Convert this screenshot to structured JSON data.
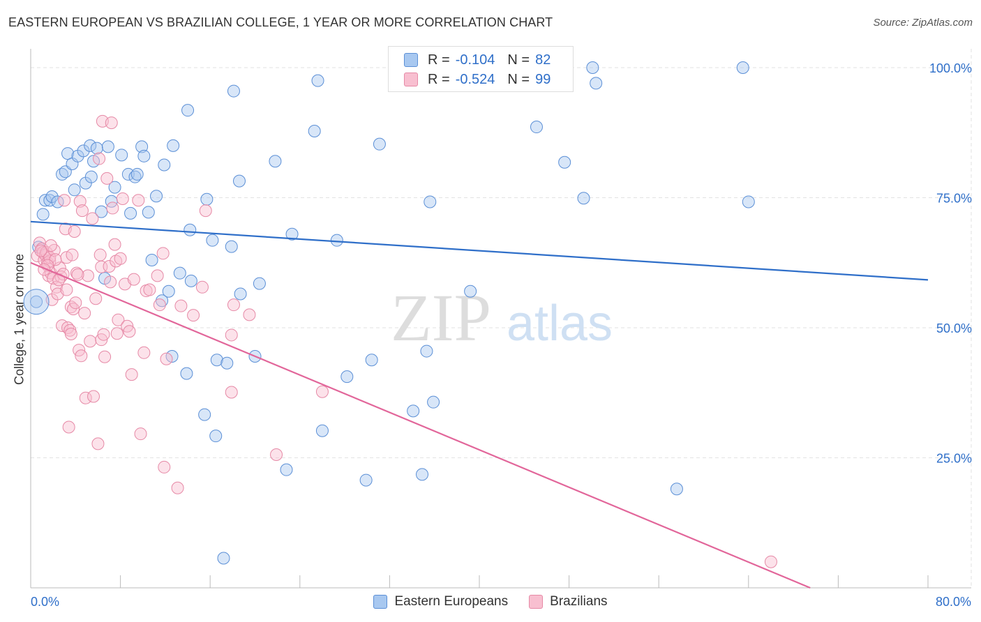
{
  "header": {
    "title": "EASTERN EUROPEAN VS BRAZILIAN COLLEGE, 1 YEAR OR MORE CORRELATION CHART",
    "source": "Source: ZipAtlas.com"
  },
  "watermark": {
    "zip": "ZIP",
    "atlas": "atlas"
  },
  "legend_top": {
    "r_label": "R =",
    "n_label": "N =",
    "rows": [
      {
        "r": "-0.104",
        "n": "82",
        "fill": "#a8c8f0",
        "stroke": "#5b8fd6"
      },
      {
        "r": "-0.524",
        "n": "99",
        "fill": "#f8bfd0",
        "stroke": "#e689a6"
      }
    ]
  },
  "chart_data": {
    "type": "scatter",
    "title": "EASTERN EUROPEAN VS BRAZILIAN COLLEGE, 1 YEAR OR MORE CORRELATION CHART",
    "xlabel": "",
    "ylabel": "College, 1 year or more",
    "xlim": [
      0,
      80
    ],
    "ylim": [
      0,
      102
    ],
    "x_tick_labels": [
      "0.0%",
      "80.0%"
    ],
    "y_ticks": [
      25,
      50,
      75,
      100
    ],
    "y_tick_labels": [
      "25.0%",
      "50.0%",
      "75.0%",
      "100.0%"
    ],
    "grid": true,
    "legend_position": "bottom",
    "series": [
      {
        "name": "Eastern Europeans",
        "color": "#5b8fd6",
        "fill": "#a8c8f0",
        "trend": {
          "x": [
            0,
            80
          ],
          "y": [
            70.4,
            59.2
          ],
          "color": "#2f6fc9"
        },
        "points": [
          [
            0.5,
            55.0
          ],
          [
            0.7,
            65.5
          ],
          [
            1.1,
            71.8
          ],
          [
            1.3,
            74.5
          ],
          [
            1.7,
            74.5
          ],
          [
            1.9,
            75.2
          ],
          [
            2.4,
            74.2
          ],
          [
            2.8,
            79.5
          ],
          [
            3.1,
            80.0
          ],
          [
            3.3,
            83.5
          ],
          [
            3.7,
            81.5
          ],
          [
            3.9,
            76.5
          ],
          [
            4.2,
            83.0
          ],
          [
            4.7,
            84.0
          ],
          [
            4.9,
            77.8
          ],
          [
            5.3,
            85.0
          ],
          [
            5.6,
            82.0
          ],
          [
            5.9,
            84.5
          ],
          [
            6.3,
            72.3
          ],
          [
            6.6,
            59.5
          ],
          [
            6.9,
            84.8
          ],
          [
            7.2,
            74.3
          ],
          [
            7.5,
            77.0
          ],
          [
            8.1,
            83.2
          ],
          [
            8.7,
            79.5
          ],
          [
            8.9,
            72.0
          ],
          [
            9.3,
            79.0
          ],
          [
            9.5,
            79.5
          ],
          [
            9.9,
            84.8
          ],
          [
            10.1,
            83.0
          ],
          [
            10.5,
            72.2
          ],
          [
            10.8,
            63.0
          ],
          [
            11.2,
            75.3
          ],
          [
            11.7,
            55.2
          ],
          [
            11.9,
            81.3
          ],
          [
            12.3,
            57.0
          ],
          [
            12.7,
            85.0
          ],
          [
            12.6,
            44.5
          ],
          [
            13.9,
            41.2
          ],
          [
            14.0,
            91.8
          ],
          [
            14.2,
            68.8
          ],
          [
            14.3,
            59.0
          ],
          [
            15.5,
            33.3
          ],
          [
            15.7,
            74.7
          ],
          [
            16.2,
            66.8
          ],
          [
            16.5,
            29.2
          ],
          [
            16.6,
            43.8
          ],
          [
            17.2,
            5.7
          ],
          [
            17.5,
            43.2
          ],
          [
            17.9,
            65.6
          ],
          [
            18.1,
            95.5
          ],
          [
            18.6,
            78.2
          ],
          [
            18.7,
            56.5
          ],
          [
            20.0,
            44.5
          ],
          [
            20.4,
            58.5
          ],
          [
            21.8,
            82.0
          ],
          [
            22.8,
            22.7
          ],
          [
            23.3,
            68.0
          ],
          [
            25.3,
            87.8
          ],
          [
            25.6,
            97.5
          ],
          [
            27.3,
            66.8
          ],
          [
            28.2,
            40.6
          ],
          [
            29.9,
            20.7
          ],
          [
            30.4,
            43.8
          ],
          [
            31.1,
            85.3
          ],
          [
            34.1,
            34.0
          ],
          [
            34.9,
            21.8
          ],
          [
            35.3,
            45.5
          ],
          [
            35.6,
            74.2
          ],
          [
            35.9,
            35.7
          ],
          [
            39.2,
            57.0
          ],
          [
            45.1,
            88.6
          ],
          [
            47.6,
            81.8
          ],
          [
            49.3,
            74.9
          ],
          [
            50.1,
            100.0
          ],
          [
            50.4,
            97.0
          ],
          [
            57.6,
            19.0
          ],
          [
            63.5,
            100.0
          ],
          [
            64.0,
            74.2
          ],
          [
            5.4,
            79.0
          ],
          [
            26.0,
            30.2
          ],
          [
            13.3,
            60.5
          ]
        ]
      },
      {
        "name": "Brazilians",
        "color": "#e689a6",
        "fill": "#f8bfd0",
        "trend": {
          "x": [
            0,
            69.5
          ],
          "y": [
            62.5,
            0
          ],
          "color": "#e2669a"
        },
        "points": [
          [
            0.6,
            63.8
          ],
          [
            0.8,
            66.3
          ],
          [
            1.0,
            65.2
          ],
          [
            1.1,
            64.5
          ],
          [
            1.2,
            63.0
          ],
          [
            1.3,
            64.0
          ],
          [
            1.4,
            64.5
          ],
          [
            1.5,
            62.5
          ],
          [
            1.6,
            60.0
          ],
          [
            1.7,
            62.8
          ],
          [
            1.7,
            63.5
          ],
          [
            1.8,
            60.5
          ],
          [
            1.9,
            55.4
          ],
          [
            2.0,
            59.5
          ],
          [
            2.1,
            64.9
          ],
          [
            2.3,
            57.8
          ],
          [
            2.4,
            56.5
          ],
          [
            2.6,
            61.5
          ],
          [
            2.7,
            59.8
          ],
          [
            2.8,
            50.4
          ],
          [
            2.9,
            60.3
          ],
          [
            3.0,
            74.5
          ],
          [
            3.1,
            69.0
          ],
          [
            3.2,
            63.5
          ],
          [
            3.3,
            50.0
          ],
          [
            3.4,
            30.9
          ],
          [
            3.5,
            49.5
          ],
          [
            3.6,
            48.8
          ],
          [
            3.6,
            54.0
          ],
          [
            3.7,
            64.0
          ],
          [
            3.8,
            53.6
          ],
          [
            3.9,
            68.5
          ],
          [
            4.0,
            54.8
          ],
          [
            4.1,
            60.5
          ],
          [
            4.3,
            45.7
          ],
          [
            4.4,
            74.3
          ],
          [
            4.5,
            44.6
          ],
          [
            4.6,
            72.5
          ],
          [
            4.8,
            52.8
          ],
          [
            4.9,
            36.5
          ],
          [
            5.1,
            60.0
          ],
          [
            5.3,
            47.4
          ],
          [
            5.5,
            71.0
          ],
          [
            5.6,
            36.8
          ],
          [
            5.8,
            55.6
          ],
          [
            6.0,
            27.7
          ],
          [
            6.1,
            82.5
          ],
          [
            6.2,
            64.0
          ],
          [
            6.3,
            61.7
          ],
          [
            6.3,
            47.7
          ],
          [
            6.4,
            89.7
          ],
          [
            6.5,
            48.7
          ],
          [
            6.6,
            44.4
          ],
          [
            6.8,
            78.7
          ],
          [
            7.0,
            61.8
          ],
          [
            7.1,
            58.8
          ],
          [
            7.2,
            89.4
          ],
          [
            7.3,
            73.0
          ],
          [
            7.5,
            66.0
          ],
          [
            7.6,
            62.8
          ],
          [
            7.7,
            48.9
          ],
          [
            7.8,
            51.5
          ],
          [
            8.0,
            63.3
          ],
          [
            8.2,
            74.8
          ],
          [
            8.4,
            58.4
          ],
          [
            8.6,
            50.3
          ],
          [
            8.8,
            49.3
          ],
          [
            9.0,
            41.0
          ],
          [
            9.2,
            59.3
          ],
          [
            9.6,
            74.5
          ],
          [
            9.8,
            29.6
          ],
          [
            10.1,
            45.2
          ],
          [
            10.3,
            57.1
          ],
          [
            10.6,
            57.3
          ],
          [
            11.3,
            60.0
          ],
          [
            11.5,
            54.4
          ],
          [
            11.8,
            64.3
          ],
          [
            11.9,
            23.2
          ],
          [
            12.1,
            44.0
          ],
          [
            13.1,
            19.2
          ],
          [
            13.4,
            54.2
          ],
          [
            14.5,
            52.4
          ],
          [
            15.3,
            57.8
          ],
          [
            15.6,
            72.5
          ],
          [
            17.9,
            48.6
          ],
          [
            17.9,
            37.6
          ],
          [
            18.1,
            54.4
          ],
          [
            19.5,
            52.5
          ],
          [
            21.9,
            25.6
          ],
          [
            26.0,
            37.7
          ],
          [
            66.0,
            5.0
          ],
          [
            1.8,
            65.8
          ],
          [
            2.2,
            63.1
          ],
          [
            1.5,
            62.0
          ],
          [
            0.9,
            64.8
          ],
          [
            2.5,
            59.2
          ],
          [
            3.2,
            57.3
          ],
          [
            4.2,
            60.2
          ],
          [
            1.2,
            61.2
          ]
        ]
      }
    ]
  },
  "legend_bottom": [
    "Eastern Europeans",
    "Brazilians"
  ]
}
